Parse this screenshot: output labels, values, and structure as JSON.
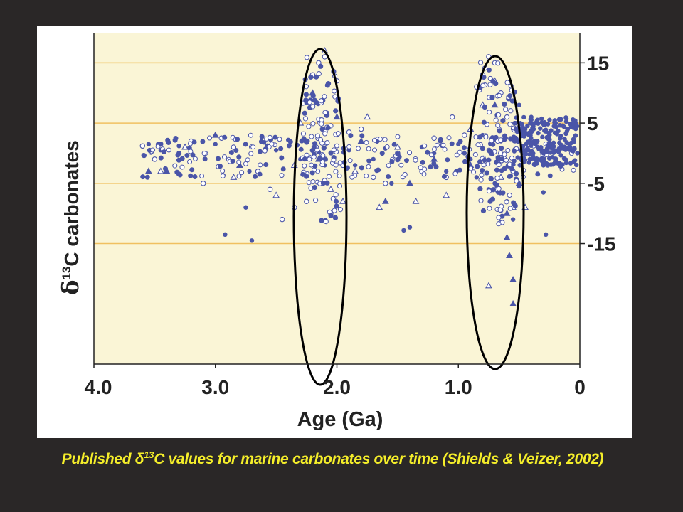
{
  "chart_data": {
    "type": "scatter",
    "title": "",
    "xlabel": "Age (Ga)",
    "ylabel_prefix": "δ",
    "ylabel_sup": "13",
    "ylabel_suffix": "C carbonates",
    "xlim": [
      4.0,
      0
    ],
    "ylim": [
      -35,
      20
    ],
    "x_ticks": [
      "4.0",
      "3.0",
      "2.0",
      "1.0",
      "0"
    ],
    "x_tick_values": [
      4.0,
      3.0,
      2.0,
      1.0,
      0
    ],
    "y_ticks": [
      "15",
      "5",
      "-5",
      "-15"
    ],
    "y_tick_values": [
      15,
      5,
      -5,
      -15
    ],
    "grid": true,
    "axis_side_y": "right",
    "colors": {
      "background": "#faf5d6",
      "gridline": "#f0c060",
      "marker": "#4a55a8",
      "ellipse": "#000000"
    },
    "series": [
      {
        "marker": "filled-circle",
        "points": [
          [
            3.55,
            1.5
          ],
          [
            3.45,
            0.5
          ],
          [
            3.3,
            1.2
          ],
          [
            3.0,
            1.5
          ],
          [
            2.92,
            -13.5
          ],
          [
            2.75,
            -9
          ],
          [
            2.7,
            -14.5
          ],
          [
            2.72,
            -3
          ],
          [
            2.6,
            1.8
          ],
          [
            2.5,
            0.5
          ],
          [
            2.4,
            2.2
          ],
          [
            2.3,
            -1
          ],
          [
            2.15,
            0.2
          ],
          [
            2.1,
            -2
          ],
          [
            2.0,
            3
          ],
          [
            1.9,
            0.5
          ],
          [
            1.85,
            -2
          ],
          [
            1.7,
            -1
          ],
          [
            1.6,
            0.8
          ],
          [
            1.55,
            -5
          ],
          [
            1.45,
            -12.8
          ],
          [
            1.4,
            -12.3
          ],
          [
            1.3,
            1
          ],
          [
            1.2,
            0
          ],
          [
            1.1,
            -3
          ],
          [
            1.0,
            1.5
          ],
          [
            0.95,
            0
          ],
          [
            0.9,
            -1
          ],
          [
            0.85,
            -4
          ],
          [
            0.8,
            3
          ],
          [
            0.75,
            -6
          ],
          [
            0.7,
            -5
          ],
          [
            0.65,
            2
          ],
          [
            0.6,
            -8
          ],
          [
            0.55,
            -11
          ],
          [
            0.5,
            8
          ],
          [
            0.45,
            4
          ],
          [
            0.4,
            6
          ],
          [
            0.35,
            2
          ],
          [
            0.3,
            -2
          ],
          [
            0.28,
            -13.5
          ],
          [
            0.25,
            3
          ],
          [
            0.2,
            5
          ],
          [
            0.15,
            1
          ],
          [
            0.1,
            4
          ],
          [
            0.05,
            2
          ],
          [
            0.02,
            0
          ],
          [
            0.3,
            -6.5
          ],
          [
            0.5,
            -5.5
          ]
        ]
      },
      {
        "marker": "open-circle",
        "points": [
          [
            3.6,
            1.2
          ],
          [
            3.5,
            -1
          ],
          [
            3.2,
            2
          ],
          [
            3.1,
            -5
          ],
          [
            2.95,
            2.5
          ],
          [
            2.85,
            1
          ],
          [
            2.65,
            -3
          ],
          [
            2.55,
            -6
          ],
          [
            2.45,
            -11
          ],
          [
            2.35,
            -9
          ],
          [
            2.25,
            -8
          ],
          [
            2.2,
            13
          ],
          [
            2.15,
            15
          ],
          [
            2.1,
            16
          ],
          [
            2.05,
            -10
          ],
          [
            2.0,
            12
          ],
          [
            1.95,
            -2
          ],
          [
            1.9,
            3.5
          ],
          [
            1.8,
            4
          ],
          [
            1.7,
            -4
          ],
          [
            1.6,
            -5
          ],
          [
            1.5,
            0
          ],
          [
            1.3,
            -3
          ],
          [
            1.2,
            2.5
          ],
          [
            1.1,
            -4
          ],
          [
            1.05,
            6
          ],
          [
            0.95,
            3
          ],
          [
            0.85,
            11
          ],
          [
            0.8,
            13
          ],
          [
            0.75,
            16
          ],
          [
            0.7,
            15
          ],
          [
            0.65,
            10
          ],
          [
            0.6,
            6
          ],
          [
            0.55,
            -3
          ],
          [
            0.4,
            0
          ],
          [
            0.2,
            -1
          ]
        ]
      },
      {
        "marker": "open-triangle",
        "points": [
          [
            3.45,
            -3
          ],
          [
            3.25,
            1
          ],
          [
            2.85,
            -4
          ],
          [
            2.5,
            -7
          ],
          [
            2.35,
            -2
          ],
          [
            2.3,
            5
          ],
          [
            2.2,
            9
          ],
          [
            2.1,
            17
          ],
          [
            2.05,
            -6
          ],
          [
            1.95,
            -8
          ],
          [
            1.85,
            -3
          ],
          [
            1.75,
            6
          ],
          [
            1.65,
            -9
          ],
          [
            1.5,
            1
          ],
          [
            1.35,
            -8
          ],
          [
            1.1,
            -7
          ],
          [
            0.9,
            4
          ],
          [
            0.8,
            8
          ],
          [
            0.75,
            -22
          ],
          [
            0.7,
            12
          ],
          [
            0.65,
            -4
          ],
          [
            0.55,
            -9
          ],
          [
            0.45,
            -9
          ]
        ]
      },
      {
        "marker": "filled-triangle",
        "points": [
          [
            3.55,
            -3
          ],
          [
            3.4,
            -3
          ],
          [
            3.0,
            3
          ],
          [
            2.8,
            -2
          ],
          [
            2.2,
            10
          ],
          [
            2.15,
            -1
          ],
          [
            2.0,
            6
          ],
          [
            1.8,
            2
          ],
          [
            1.6,
            -8
          ],
          [
            1.4,
            -5
          ],
          [
            1.2,
            -1
          ],
          [
            0.9,
            -2
          ],
          [
            0.7,
            8
          ],
          [
            0.6,
            -10
          ],
          [
            0.6,
            -14
          ],
          [
            0.58,
            -17
          ],
          [
            0.55,
            -21
          ],
          [
            0.55,
            -25
          ],
          [
            0.5,
            -5
          ]
        ]
      }
    ]
  },
  "caption": {
    "prefix": "Published δ",
    "sup": "13",
    "suffix": "C values for marine carbonates over time (Shields & Veizer, 2002)"
  }
}
